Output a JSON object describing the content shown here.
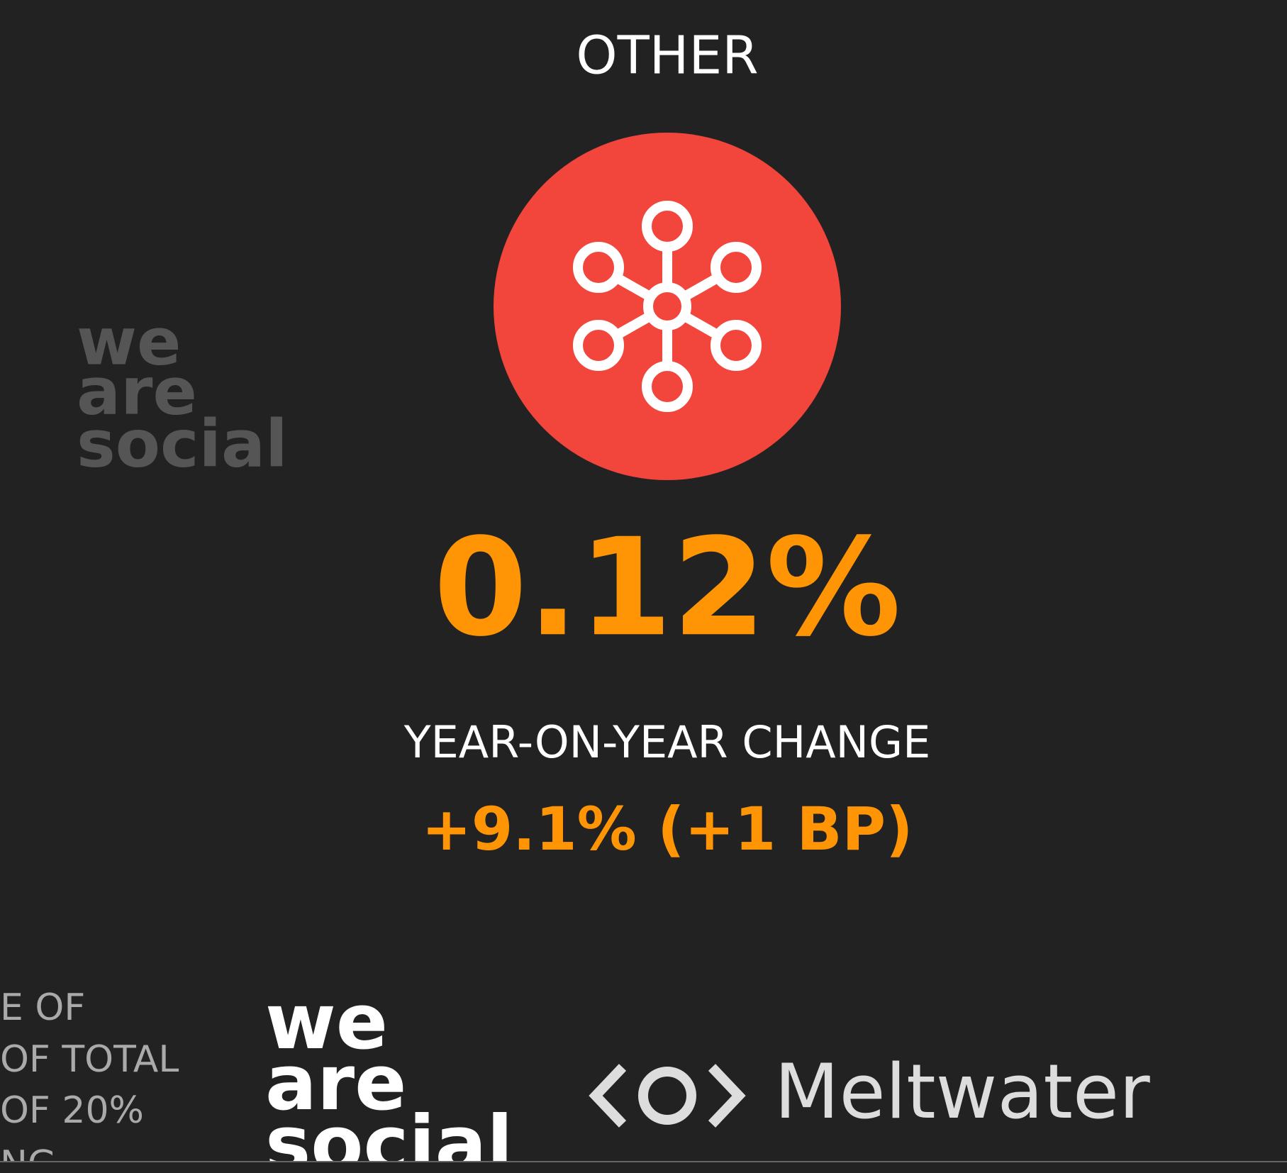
{
  "header": {
    "title": "OTHER"
  },
  "stat": {
    "value": "0.12%",
    "change_label": "YEAR-ON-YEAR CHANGE",
    "change_value": "+9.1% (+1 BP)"
  },
  "watermark": {
    "lines": [
      "we",
      "are",
      "social"
    ]
  },
  "side_text": {
    "lines": [
      "E OF",
      "OF TOTAL",
      "OF 20%",
      "NG"
    ]
  },
  "footer": {
    "logo_lines": [
      "we",
      "are",
      "social"
    ],
    "partner": "Meltwater"
  }
}
